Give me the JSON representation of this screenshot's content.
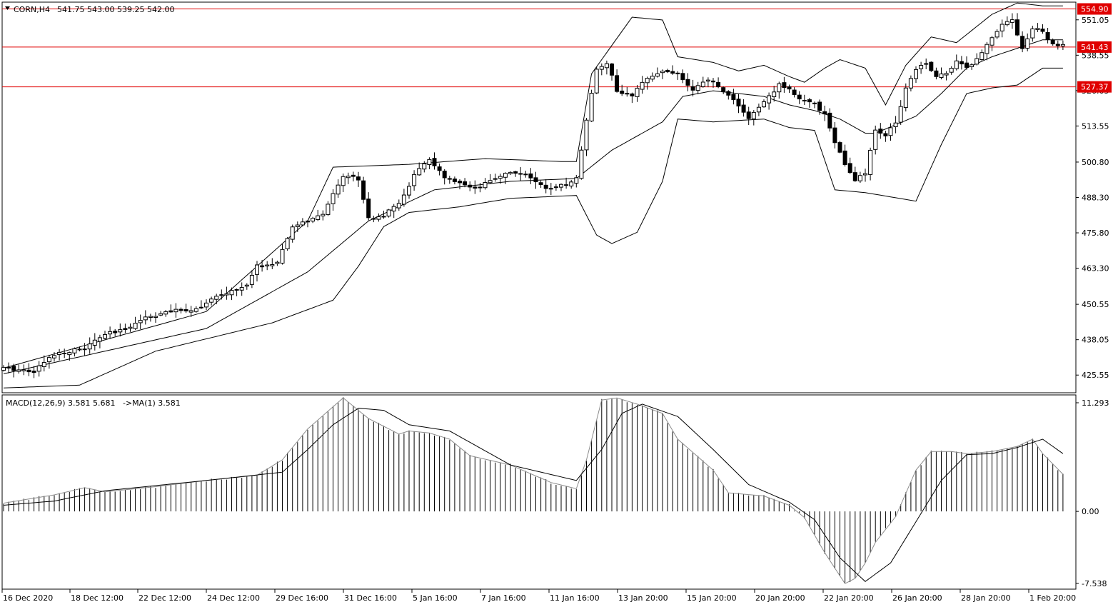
{
  "header": {
    "symbol": "CORN,H4",
    "ohlc": "541.75 543.00 539.25 542.00"
  },
  "macd_header": {
    "label": "MACD(12,26,9) 3.581 5.681",
    "ma_label": "->MA(1) 3.581"
  },
  "colors": {
    "level_line": "#e00000",
    "candle": "#000000",
    "background": "#ffffff"
  },
  "chart_data": [
    {
      "type": "line",
      "subtype": "candlestick_with_bollinger",
      "ylim": [
        419.3,
        557.3
      ],
      "y_ticks": [
        "551.05",
        "538.55",
        "526.05",
        "513.55",
        "500.80",
        "488.30",
        "475.80",
        "463.30",
        "450.55",
        "438.05",
        "425.55"
      ],
      "x_ticks": [
        "16 Dec 2020",
        "18 Dec 12:00",
        "22 Dec 12:00",
        "24 Dec 12:00",
        "29 Dec 16:00",
        "31 Dec 16:00",
        "5 Jan 16:00",
        "7 Jan 16:00",
        "11 Jan 16:00",
        "13 Jan 20:00",
        "15 Jan 20:00",
        "20 Jan 20:00",
        "22 Jan 20:00",
        "26 Jan 20:00",
        "28 Jan 20:00",
        "1 Feb 20:00"
      ],
      "levels": [
        {
          "label": "554.90",
          "value": 554.9
        },
        {
          "label": "541.43",
          "value": 541.43
        },
        {
          "label": "527.37",
          "value": 527.37
        }
      ],
      "close_anchors": [
        [
          0,
          428
        ],
        [
          6,
          427
        ],
        [
          10,
          433
        ],
        [
          16,
          435
        ],
        [
          20,
          440
        ],
        [
          23,
          441
        ],
        [
          28,
          446
        ],
        [
          33,
          448
        ],
        [
          38,
          449
        ],
        [
          42,
          453
        ],
        [
          46,
          456
        ],
        [
          48,
          457
        ],
        [
          50,
          464
        ],
        [
          54,
          465
        ],
        [
          57,
          478
        ],
        [
          60,
          480
        ],
        [
          63,
          482
        ],
        [
          65,
          490
        ],
        [
          67,
          496
        ],
        [
          70,
          495
        ],
        [
          72,
          481
        ],
        [
          75,
          482
        ],
        [
          78,
          486
        ],
        [
          81,
          496
        ],
        [
          84,
          502
        ],
        [
          87,
          495
        ],
        [
          90,
          493
        ],
        [
          93,
          491
        ],
        [
          96,
          494
        ],
        [
          99,
          497
        ],
        [
          102,
          497
        ],
        [
          105,
          494
        ],
        [
          108,
          491
        ],
        [
          111,
          493
        ],
        [
          113,
          495
        ],
        [
          115,
          516
        ],
        [
          117,
          534
        ],
        [
          119,
          536
        ],
        [
          121,
          526
        ],
        [
          124,
          524
        ],
        [
          127,
          531
        ],
        [
          130,
          533
        ],
        [
          133,
          532
        ],
        [
          136,
          526
        ],
        [
          139,
          530
        ],
        [
          142,
          526
        ],
        [
          145,
          521
        ],
        [
          147,
          516
        ],
        [
          149,
          520
        ],
        [
          151,
          524
        ],
        [
          153,
          528
        ],
        [
          155,
          527
        ],
        [
          157,
          523
        ],
        [
          160,
          521
        ],
        [
          162,
          518
        ],
        [
          164,
          508
        ],
        [
          166,
          500
        ],
        [
          168,
          494
        ],
        [
          170,
          497
        ],
        [
          172,
          512
        ],
        [
          174,
          510
        ],
        [
          176,
          515
        ],
        [
          178,
          527
        ],
        [
          180,
          534
        ],
        [
          182,
          536
        ],
        [
          184,
          531
        ],
        [
          186,
          532
        ],
        [
          188,
          537
        ],
        [
          190,
          534
        ],
        [
          192,
          537
        ],
        [
          195,
          545
        ],
        [
          197,
          550
        ],
        [
          199,
          551
        ],
        [
          201,
          541
        ],
        [
          203,
          548
        ],
        [
          205,
          547
        ],
        [
          207,
          542
        ],
        [
          209,
          542
        ]
      ],
      "bollinger_upper_anchors": [
        [
          0,
          428
        ],
        [
          20,
          438
        ],
        [
          40,
          448
        ],
        [
          60,
          480
        ],
        [
          65,
          499
        ],
        [
          80,
          500
        ],
        [
          95,
          502
        ],
        [
          110,
          501
        ],
        [
          113,
          501
        ],
        [
          116,
          532
        ],
        [
          124,
          552
        ],
        [
          130,
          551
        ],
        [
          133,
          538
        ],
        [
          140,
          536
        ],
        [
          145,
          533
        ],
        [
          150,
          535
        ],
        [
          155,
          531
        ],
        [
          158,
          529
        ],
        [
          162,
          534
        ],
        [
          165,
          537
        ],
        [
          170,
          534
        ],
        [
          174,
          521
        ],
        [
          178,
          535
        ],
        [
          183,
          545
        ],
        [
          188,
          543
        ],
        [
          195,
          553
        ],
        [
          200,
          557
        ],
        [
          205,
          556
        ]
      ],
      "bollinger_middle_anchors": [
        [
          0,
          426
        ],
        [
          20,
          434
        ],
        [
          40,
          442
        ],
        [
          60,
          462
        ],
        [
          72,
          480
        ],
        [
          85,
          491
        ],
        [
          100,
          494
        ],
        [
          113,
          495
        ],
        [
          120,
          505
        ],
        [
          130,
          515
        ],
        [
          134,
          524
        ],
        [
          140,
          526
        ],
        [
          145,
          525
        ],
        [
          150,
          524
        ],
        [
          155,
          521
        ],
        [
          160,
          519
        ],
        [
          165,
          516
        ],
        [
          170,
          511
        ],
        [
          172,
          511
        ],
        [
          180,
          517
        ],
        [
          185,
          525
        ],
        [
          190,
          534
        ],
        [
          195,
          538
        ],
        [
          200,
          541
        ],
        [
          205,
          544
        ]
      ],
      "bollinger_lower_anchors": [
        [
          0,
          421
        ],
        [
          15,
          422
        ],
        [
          30,
          434
        ],
        [
          53,
          444
        ],
        [
          65,
          452
        ],
        [
          70,
          464
        ],
        [
          75,
          478
        ],
        [
          80,
          483
        ],
        [
          90,
          485
        ],
        [
          100,
          488
        ],
        [
          113,
          489
        ],
        [
          117,
          475
        ],
        [
          120,
          472
        ],
        [
          125,
          476
        ],
        [
          130,
          494
        ],
        [
          133,
          516
        ],
        [
          140,
          515
        ],
        [
          150,
          516
        ],
        [
          155,
          513
        ],
        [
          160,
          512
        ],
        [
          164,
          491
        ],
        [
          170,
          490
        ],
        [
          180,
          487
        ],
        [
          185,
          507
        ],
        [
          190,
          525
        ],
        [
          195,
          527
        ],
        [
          200,
          528
        ],
        [
          205,
          534
        ]
      ]
    },
    {
      "type": "bar",
      "subtype": "macd_histogram",
      "ylim": [
        -7.538,
        11.293
      ],
      "y_ticks": [
        "11.293",
        "0.00",
        "-7.538"
      ],
      "histogram_anchors": [
        [
          0,
          0.8
        ],
        [
          10,
          1.6
        ],
        [
          16,
          2.3
        ],
        [
          20,
          1.9
        ],
        [
          30,
          2.4
        ],
        [
          40,
          3.0
        ],
        [
          50,
          3.5
        ],
        [
          55,
          5.0
        ],
        [
          60,
          8.0
        ],
        [
          67,
          11.0
        ],
        [
          72,
          9.0
        ],
        [
          78,
          7.5
        ],
        [
          80,
          7.8
        ],
        [
          84,
          7.6
        ],
        [
          88,
          7.0
        ],
        [
          92,
          5.4
        ],
        [
          100,
          4.5
        ],
        [
          108,
          2.8
        ],
        [
          113,
          2.2
        ],
        [
          115,
          5.0
        ],
        [
          118,
          10.8
        ],
        [
          121,
          11.0
        ],
        [
          125,
          10.4
        ],
        [
          130,
          9.5
        ],
        [
          133,
          7.0
        ],
        [
          140,
          4.0
        ],
        [
          143,
          1.8
        ],
        [
          150,
          1.5
        ],
        [
          155,
          0.6
        ],
        [
          158,
          -0.6
        ],
        [
          162,
          -4.0
        ],
        [
          166,
          -7.0
        ],
        [
          168,
          -6.5
        ],
        [
          170,
          -5.0
        ],
        [
          172,
          -3.0
        ],
        [
          176,
          -0.5
        ],
        [
          180,
          4.0
        ],
        [
          183,
          5.8
        ],
        [
          187,
          5.8
        ],
        [
          190,
          5.6
        ],
        [
          195,
          5.8
        ],
        [
          200,
          6.3
        ],
        [
          203,
          7.0
        ],
        [
          205,
          5.6
        ],
        [
          209,
          3.6
        ]
      ],
      "signal_anchors": [
        [
          0,
          0.6
        ],
        [
          10,
          1.0
        ],
        [
          20,
          2.0
        ],
        [
          40,
          3.0
        ],
        [
          55,
          3.8
        ],
        [
          60,
          6.0
        ],
        [
          65,
          8.4
        ],
        [
          70,
          10.0
        ],
        [
          75,
          9.8
        ],
        [
          80,
          8.4
        ],
        [
          88,
          7.8
        ],
        [
          100,
          4.5
        ],
        [
          113,
          3.0
        ],
        [
          118,
          6.0
        ],
        [
          122,
          9.5
        ],
        [
          126,
          10.4
        ],
        [
          133,
          9.2
        ],
        [
          140,
          6.0
        ],
        [
          147,
          2.6
        ],
        [
          155,
          0.9
        ],
        [
          160,
          -0.8
        ],
        [
          165,
          -4.5
        ],
        [
          170,
          -6.8
        ],
        [
          175,
          -5.0
        ],
        [
          180,
          -1.0
        ],
        [
          185,
          3.0
        ],
        [
          190,
          5.5
        ],
        [
          195,
          5.6
        ],
        [
          200,
          6.2
        ],
        [
          205,
          7.0
        ],
        [
          209,
          5.6
        ]
      ]
    }
  ]
}
